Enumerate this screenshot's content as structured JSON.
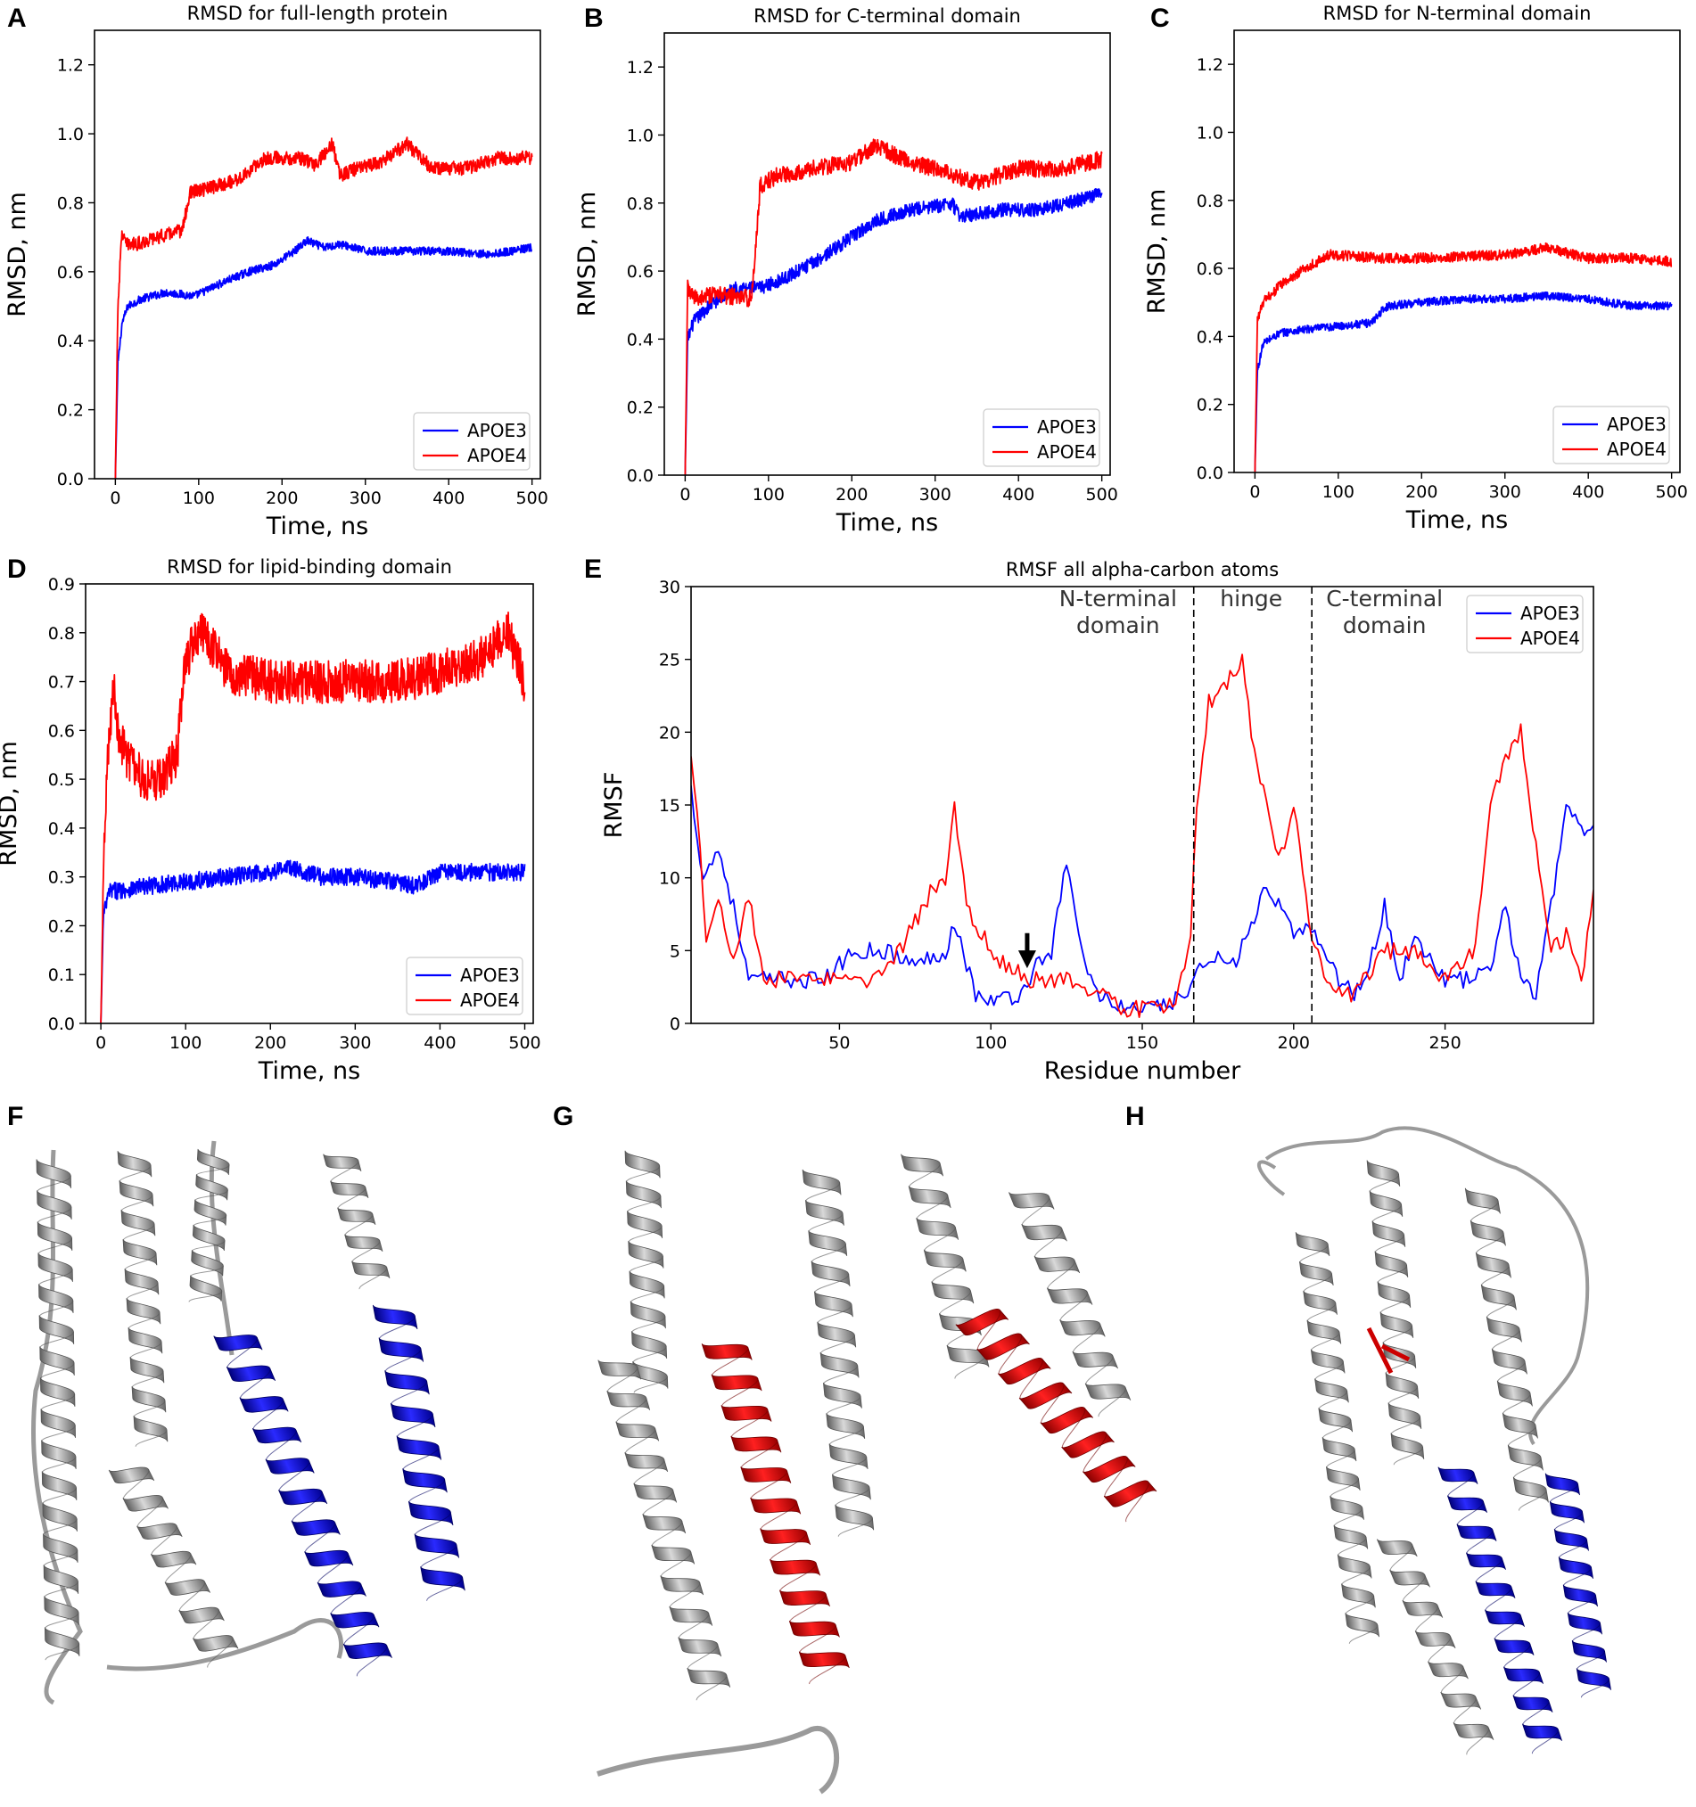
{
  "colors": {
    "APOE3": "#0000ff",
    "APOE4": "#ff0000",
    "helix_gray": "#9a9a9a"
  },
  "chart_data": [
    {
      "id": "A",
      "type": "line",
      "letter": "A",
      "title": "RMSD for full-length protein",
      "xlabel": "Time, ns",
      "ylabel": "RMSD, nm",
      "xlim": [
        -25,
        510
      ],
      "ylim": [
        0,
        1.3
      ],
      "xticks": [
        0,
        100,
        200,
        300,
        400,
        500
      ],
      "yticks": [
        0.0,
        0.2,
        0.4,
        0.6,
        0.8,
        1.0,
        1.2
      ],
      "ytick_labels": [
        "0.0",
        "0.2",
        "0.4",
        "0.6",
        "0.8",
        "1.0",
        "1.2"
      ],
      "legend": "lower-right",
      "series": [
        {
          "name": "APOE3",
          "noise": 0.012,
          "x": [
            0,
            3,
            8,
            15,
            30,
            60,
            95,
            130,
            160,
            190,
            215,
            230,
            250,
            270,
            300,
            350,
            400,
            450,
            500
          ],
          "y": [
            0.0,
            0.33,
            0.45,
            0.5,
            0.52,
            0.54,
            0.53,
            0.57,
            0.6,
            0.62,
            0.66,
            0.69,
            0.67,
            0.68,
            0.66,
            0.66,
            0.66,
            0.65,
            0.67
          ]
        },
        {
          "name": "APOE4",
          "noise": 0.02,
          "x": [
            0,
            3,
            8,
            12,
            25,
            50,
            80,
            90,
            110,
            150,
            180,
            220,
            240,
            260,
            270,
            290,
            320,
            350,
            380,
            420,
            460,
            500
          ],
          "y": [
            0.0,
            0.5,
            0.72,
            0.68,
            0.68,
            0.7,
            0.72,
            0.83,
            0.84,
            0.87,
            0.93,
            0.93,
            0.91,
            0.97,
            0.88,
            0.9,
            0.92,
            0.97,
            0.9,
            0.9,
            0.93,
            0.93
          ]
        }
      ]
    },
    {
      "id": "B",
      "type": "line",
      "letter": "B",
      "title": "RMSD for C-terminal domain",
      "xlabel": "Time, ns",
      "ylabel": "RMSD, nm",
      "xlim": [
        -25,
        510
      ],
      "ylim": [
        0,
        1.3
      ],
      "xticks": [
        0,
        100,
        200,
        300,
        400,
        500
      ],
      "yticks": [
        0.0,
        0.2,
        0.4,
        0.6,
        0.8,
        1.0,
        1.2
      ],
      "ytick_labels": [
        "0.0",
        "0.2",
        "0.4",
        "0.6",
        "0.8",
        "1.0",
        "1.2"
      ],
      "legend": "lower-right",
      "series": [
        {
          "name": "APOE3",
          "noise": 0.02,
          "x": [
            0,
            3,
            10,
            30,
            60,
            90,
            120,
            150,
            170,
            200,
            230,
            270,
            300,
            320,
            330,
            380,
            420,
            460,
            500
          ],
          "y": [
            0.0,
            0.4,
            0.45,
            0.5,
            0.55,
            0.55,
            0.58,
            0.62,
            0.65,
            0.7,
            0.75,
            0.78,
            0.79,
            0.8,
            0.76,
            0.78,
            0.78,
            0.8,
            0.83
          ]
        },
        {
          "name": "APOE4",
          "noise": 0.025,
          "x": [
            0,
            3,
            10,
            40,
            80,
            90,
            110,
            150,
            200,
            230,
            260,
            300,
            350,
            400,
            450,
            500
          ],
          "y": [
            0.0,
            0.55,
            0.52,
            0.53,
            0.52,
            0.85,
            0.88,
            0.9,
            0.92,
            0.97,
            0.93,
            0.9,
            0.86,
            0.9,
            0.9,
            0.93
          ]
        }
      ]
    },
    {
      "id": "C",
      "type": "line",
      "letter": "C",
      "title": "RMSD for N-terminal domain",
      "xlabel": "Time, ns",
      "ylabel": "RMSD, nm",
      "xlim": [
        -25,
        510
      ],
      "ylim": [
        0,
        1.3
      ],
      "xticks": [
        0,
        100,
        200,
        300,
        400,
        500
      ],
      "yticks": [
        0.0,
        0.2,
        0.4,
        0.6,
        0.8,
        1.0,
        1.2
      ],
      "ytick_labels": [
        "0.0",
        "0.2",
        "0.4",
        "0.6",
        "0.8",
        "1.0",
        "1.2"
      ],
      "legend": "lower-right",
      "series": [
        {
          "name": "APOE3",
          "noise": 0.012,
          "x": [
            0,
            3,
            10,
            30,
            60,
            100,
            140,
            150,
            160,
            200,
            250,
            300,
            350,
            400,
            450,
            500
          ],
          "y": [
            0.0,
            0.3,
            0.38,
            0.41,
            0.42,
            0.43,
            0.44,
            0.47,
            0.49,
            0.5,
            0.51,
            0.51,
            0.52,
            0.51,
            0.49,
            0.49
          ]
        },
        {
          "name": "APOE4",
          "noise": 0.015,
          "x": [
            0,
            3,
            10,
            30,
            60,
            90,
            150,
            200,
            300,
            350,
            400,
            450,
            500
          ],
          "y": [
            0.0,
            0.45,
            0.5,
            0.55,
            0.6,
            0.64,
            0.63,
            0.63,
            0.64,
            0.66,
            0.63,
            0.63,
            0.62
          ]
        }
      ]
    },
    {
      "id": "D",
      "type": "line",
      "letter": "D",
      "title": "RMSD for lipid-binding domain",
      "xlabel": "Time, ns",
      "ylabel": "RMSD, nm",
      "xlim": [
        -18,
        510
      ],
      "ylim": [
        0,
        0.9
      ],
      "xticks": [
        0,
        100,
        200,
        300,
        400,
        500
      ],
      "yticks": [
        0.0,
        0.1,
        0.2,
        0.3,
        0.4,
        0.5,
        0.6,
        0.7,
        0.8,
        0.9
      ],
      "ytick_labels": [
        "0.0",
        "0.1",
        "0.2",
        "0.3",
        "0.4",
        "0.5",
        "0.6",
        "0.7",
        "0.8",
        "0.9"
      ],
      "legend": "lower-right",
      "series": [
        {
          "name": "APOE3",
          "noise": 0.018,
          "x": [
            0,
            3,
            10,
            50,
            100,
            150,
            200,
            220,
            260,
            300,
            350,
            370,
            400,
            450,
            500
          ],
          "y": [
            0.0,
            0.22,
            0.27,
            0.28,
            0.29,
            0.3,
            0.31,
            0.32,
            0.3,
            0.3,
            0.29,
            0.28,
            0.31,
            0.31,
            0.31
          ]
        },
        {
          "name": "APOE4",
          "noise": 0.045,
          "x": [
            0,
            3,
            8,
            15,
            20,
            30,
            50,
            70,
            90,
            100,
            120,
            150,
            200,
            250,
            300,
            350,
            400,
            450,
            480,
            500
          ],
          "y": [
            0.0,
            0.3,
            0.55,
            0.7,
            0.6,
            0.55,
            0.5,
            0.5,
            0.55,
            0.75,
            0.8,
            0.72,
            0.7,
            0.7,
            0.7,
            0.7,
            0.72,
            0.75,
            0.8,
            0.7
          ]
        }
      ]
    },
    {
      "id": "E",
      "type": "line",
      "letter": "E",
      "title": "RMSF all alpha-carbon atoms",
      "xlabel": "Residue number",
      "ylabel": "RMSF",
      "xlim": [
        1,
        299
      ],
      "ylim": [
        0,
        30
      ],
      "xticks": [
        50,
        100,
        150,
        200,
        250
      ],
      "yticks": [
        0,
        5,
        10,
        15,
        20,
        25,
        30
      ],
      "ytick_labels": [
        "0",
        "5",
        "10",
        "15",
        "20",
        "25",
        "30"
      ],
      "legend": "top-right",
      "domain_lines": [
        167,
        206
      ],
      "domain_labels": [
        {
          "x": 142,
          "lines": [
            "N-terminal",
            "domain"
          ]
        },
        {
          "x": 186,
          "lines": [
            "hinge"
          ]
        },
        {
          "x": 230,
          "lines": [
            "C-terminal",
            "domain"
          ]
        }
      ],
      "arrow_residue": 112,
      "series": [
        {
          "name": "APOE3",
          "noise": 0.6,
          "x": [
            1,
            5,
            10,
            15,
            20,
            25,
            35,
            45,
            55,
            65,
            75,
            85,
            88,
            95,
            100,
            110,
            115,
            120,
            125,
            130,
            135,
            145,
            155,
            165,
            170,
            175,
            180,
            185,
            190,
            195,
            200,
            205,
            210,
            215,
            220,
            225,
            230,
            235,
            240,
            250,
            260,
            265,
            270,
            275,
            280,
            285,
            290,
            295,
            299
          ],
          "y": [
            16,
            10,
            12,
            8,
            3,
            3,
            3,
            3,
            5,
            5,
            4,
            5,
            7,
            2,
            1.5,
            2,
            4,
            5,
            11,
            5,
            2,
            1,
            1,
            2,
            4,
            5,
            4,
            6,
            9,
            8,
            6,
            7,
            5,
            3,
            2,
            4,
            8,
            3,
            6,
            3,
            3,
            4,
            8,
            3,
            2,
            8,
            15,
            13,
            14
          ]
        },
        {
          "name": "APOE4",
          "noise": 0.6,
          "x": [
            1,
            3,
            6,
            10,
            15,
            20,
            25,
            30,
            40,
            50,
            60,
            70,
            80,
            85,
            88,
            92,
            100,
            105,
            112,
            120,
            125,
            135,
            145,
            155,
            162,
            166,
            168,
            172,
            176,
            180,
            183,
            186,
            190,
            195,
            200,
            203,
            206,
            210,
            215,
            220,
            230,
            240,
            250,
            260,
            265,
            270,
            275,
            280,
            285,
            290,
            295,
            299
          ],
          "y": [
            18,
            15,
            6,
            9,
            4,
            9,
            3,
            3,
            3,
            3,
            3,
            5,
            9,
            10,
            15,
            8,
            5,
            4,
            3,
            3,
            3,
            2,
            1,
            1,
            2,
            6,
            15,
            22,
            23,
            24,
            25,
            20,
            16,
            11,
            15,
            10,
            6,
            3,
            2,
            2,
            5,
            5,
            3,
            5,
            15,
            18,
            20,
            12,
            5,
            6,
            3,
            9
          ]
        }
      ]
    }
  ],
  "structures": [
    {
      "id": "F",
      "letter": "F"
    },
    {
      "id": "G",
      "letter": "G"
    },
    {
      "id": "H",
      "letter": "H"
    }
  ]
}
